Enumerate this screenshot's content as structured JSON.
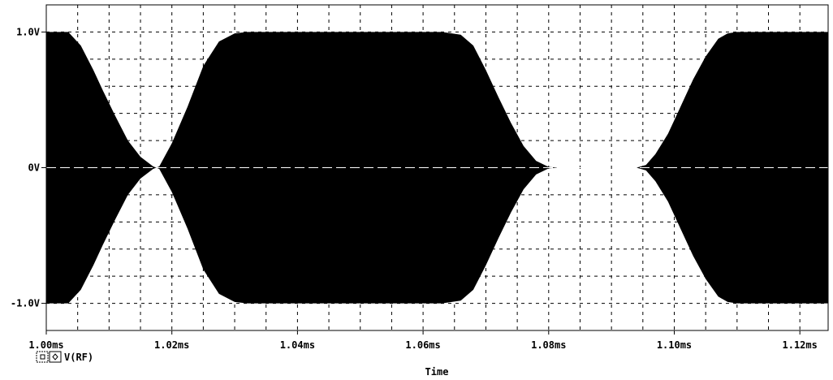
{
  "chart_data": {
    "type": "line",
    "title": "",
    "xlabel": "Time",
    "ylabel": "",
    "xlim": [
      1.0,
      1.1245
    ],
    "ylim": [
      -1.2,
      1.2
    ],
    "x_unit": "ms",
    "x_ticks": [
      {
        "value": 1.0,
        "label": "1.00ms"
      },
      {
        "value": 1.02,
        "label": "1.02ms"
      },
      {
        "value": 1.04,
        "label": "1.04ms"
      },
      {
        "value": 1.06,
        "label": "1.06ms"
      },
      {
        "value": 1.08,
        "label": "1.08ms"
      },
      {
        "value": 1.1,
        "label": "1.10ms"
      },
      {
        "value": 1.12,
        "label": "1.12ms"
      }
    ],
    "y_ticks": [
      {
        "value": 1.0,
        "label": "1.0V"
      },
      {
        "value": 0.0,
        "label": "0V"
      },
      {
        "value": -1.0,
        "label": "-1.0V"
      }
    ],
    "grid": true,
    "legend_position": "bottom-left",
    "series": [
      {
        "name": "V(RF)",
        "kind": "envelope",
        "color": "#000000",
        "envelope_x": [
          1.0,
          1.0035,
          1.0055,
          1.0075,
          1.009,
          1.011,
          1.013,
          1.015,
          1.017,
          1.0175,
          1.018,
          1.02,
          1.0225,
          1.025,
          1.0275,
          1.03,
          1.032,
          1.035,
          1.055,
          1.063,
          1.066,
          1.068,
          1.07,
          1.072,
          1.074,
          1.076,
          1.078,
          1.08,
          1.0815,
          1.094,
          1.0955,
          1.097,
          1.099,
          1.101,
          1.103,
          1.105,
          1.107,
          1.1085,
          1.11,
          1.1245
        ],
        "envelope_amplitude": [
          1.0,
          1.0,
          0.9,
          0.72,
          0.57,
          0.38,
          0.2,
          0.08,
          0.01,
          0.0,
          0.01,
          0.18,
          0.45,
          0.75,
          0.93,
          0.99,
          1.0,
          1.0,
          1.0,
          1.0,
          0.98,
          0.9,
          0.72,
          0.52,
          0.33,
          0.16,
          0.05,
          0.005,
          0.0,
          0.0,
          0.02,
          0.1,
          0.25,
          0.45,
          0.65,
          0.82,
          0.95,
          0.99,
          1.0,
          1.0
        ]
      }
    ]
  },
  "legend": {
    "symbol_icon": "square-marker-icon",
    "selector_icon": "diamond-marker-icon",
    "label": "V(RF)"
  },
  "colors": {
    "background": "#ffffff",
    "trace": "#000000",
    "grid": "#000000"
  }
}
